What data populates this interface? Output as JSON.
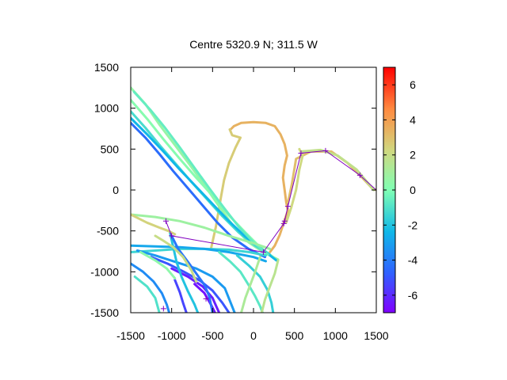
{
  "chart_data": {
    "type": "scatter",
    "title": "Centre 5320.9 N; 311.5  W",
    "xlabel": "",
    "ylabel": "",
    "xlim": [
      -1500,
      1500
    ],
    "ylim": [
      -1500,
      1500
    ],
    "x_ticks": [
      -1500,
      -1000,
      -500,
      0,
      500,
      1000,
      1500
    ],
    "y_ticks": [
      -1500,
      -1000,
      -500,
      0,
      500,
      1000,
      1500
    ],
    "x_tick_labels": [
      "-1500",
      "-1000",
      "-500",
      "0",
      "500",
      "1000",
      "1500"
    ],
    "y_tick_labels": [
      "1500",
      "1000",
      "500",
      "0",
      "-500",
      "-1000",
      "-1500"
    ],
    "colorbar": {
      "range": [
        -7,
        7
      ],
      "ticks": [
        6,
        4,
        2,
        0,
        -2,
        -4,
        -6
      ],
      "tick_labels": [
        "6",
        "4",
        "2",
        "0",
        "-2",
        "-4",
        "-6"
      ],
      "palette": "rainbow (purple to red)"
    },
    "grid": false,
    "legend": "none",
    "tracks": [
      {
        "value": 3.4,
        "points": [
          [
            -280,
            740
          ],
          [
            -240,
            780
          ],
          [
            -150,
            820
          ],
          [
            0,
            830
          ],
          [
            150,
            820
          ],
          [
            260,
            780
          ],
          [
            330,
            680
          ],
          [
            380,
            560
          ],
          [
            410,
            420
          ],
          [
            380,
            300
          ],
          [
            360,
            150
          ],
          [
            380,
            0
          ],
          [
            400,
            -150
          ],
          [
            420,
            -250
          ],
          [
            370,
            -400
          ],
          [
            320,
            -550
          ],
          [
            260,
            -680
          ],
          [
            200,
            -760
          ]
        ]
      },
      {
        "value": 2.6,
        "points": [
          [
            -520,
            -720
          ],
          [
            -460,
            -450
          ],
          [
            -400,
            -100
          ],
          [
            -360,
            120
          ],
          [
            -300,
            330
          ],
          [
            -220,
            520
          ],
          [
            -160,
            640
          ],
          [
            -260,
            670
          ],
          [
            -290,
            740
          ]
        ]
      },
      {
        "value": 3.0,
        "points": [
          [
            420,
            -160
          ],
          [
            470,
            80
          ],
          [
            520,
            380
          ],
          [
            700,
            470
          ],
          [
            950,
            470
          ],
          [
            1150,
            330
          ],
          [
            1300,
            180
          ],
          [
            1450,
            20
          ],
          [
            1500,
            0
          ]
        ]
      },
      {
        "value": 1.8,
        "points": [
          [
            580,
            470
          ],
          [
            820,
            490
          ],
          [
            1030,
            420
          ],
          [
            1260,
            250
          ],
          [
            1470,
            0
          ]
        ]
      },
      {
        "value": 2.2,
        "points": [
          [
            400,
            -400
          ],
          [
            460,
            -220
          ],
          [
            520,
            0
          ],
          [
            560,
            250
          ],
          [
            600,
            420
          ],
          [
            560,
            500
          ]
        ]
      },
      {
        "value": 0.6,
        "points": [
          [
            -1500,
            1250
          ],
          [
            -1320,
            1050
          ],
          [
            -1150,
            800
          ],
          [
            -960,
            550
          ],
          [
            -780,
            310
          ],
          [
            -600,
            60
          ],
          [
            -420,
            -200
          ],
          [
            -240,
            -450
          ],
          [
            -60,
            -640
          ],
          [
            120,
            -760
          ],
          [
            300,
            -850
          ]
        ]
      },
      {
        "value": 0.2,
        "points": [
          [
            -1500,
            1100
          ],
          [
            -1300,
            870
          ],
          [
            -1100,
            620
          ],
          [
            -900,
            380
          ],
          [
            -700,
            150
          ],
          [
            -500,
            -70
          ],
          [
            -300,
            -310
          ],
          [
            -100,
            -520
          ],
          [
            80,
            -700
          ],
          [
            240,
            -820
          ]
        ]
      },
      {
        "value": -1.2,
        "points": [
          [
            -1500,
            960
          ],
          [
            -1320,
            760
          ],
          [
            -1140,
            540
          ],
          [
            -950,
            320
          ],
          [
            -760,
            100
          ],
          [
            -570,
            -110
          ],
          [
            -380,
            -320
          ],
          [
            -180,
            -520
          ],
          [
            20,
            -680
          ],
          [
            200,
            -790
          ]
        ]
      },
      {
        "value": -2.4,
        "points": [
          [
            -1500,
            880
          ],
          [
            -1300,
            680
          ],
          [
            -1100,
            470
          ],
          [
            -900,
            250
          ],
          [
            -700,
            40
          ],
          [
            -500,
            -170
          ],
          [
            -300,
            -380
          ],
          [
            -100,
            -570
          ],
          [
            100,
            -720
          ],
          [
            280,
            -860
          ]
        ]
      },
      {
        "value": -4.4,
        "points": [
          [
            -1500,
            820
          ],
          [
            -1320,
            640
          ],
          [
            -1150,
            440
          ],
          [
            -980,
            230
          ],
          [
            -800,
            20
          ],
          [
            -620,
            -190
          ],
          [
            -440,
            -400
          ],
          [
            -260,
            -580
          ],
          [
            -60,
            -720
          ],
          [
            140,
            -820
          ]
        ]
      },
      {
        "value": -0.6,
        "points": [
          [
            -1460,
            1200
          ],
          [
            -1260,
            980
          ],
          [
            -1080,
            760
          ],
          [
            -900,
            520
          ],
          [
            -720,
            270
          ],
          [
            -540,
            20
          ],
          [
            -360,
            -220
          ],
          [
            -180,
            -450
          ],
          [
            0,
            -640
          ],
          [
            180,
            -790
          ]
        ]
      },
      {
        "value": 0.8,
        "points": [
          [
            -1500,
            -300
          ],
          [
            -1200,
            -330
          ],
          [
            -900,
            -380
          ],
          [
            -600,
            -460
          ],
          [
            -300,
            -560
          ],
          [
            0,
            -650
          ],
          [
            200,
            -720
          ]
        ]
      },
      {
        "value": -1.4,
        "points": [
          [
            -1500,
            -760
          ],
          [
            -1200,
            -740
          ],
          [
            -900,
            -720
          ],
          [
            -600,
            -720
          ],
          [
            -300,
            -730
          ],
          [
            -50,
            -760
          ],
          [
            150,
            -800
          ]
        ]
      },
      {
        "value": -2.8,
        "points": [
          [
            -1500,
            -680
          ],
          [
            -1200,
            -690
          ],
          [
            -900,
            -700
          ],
          [
            -600,
            -720
          ],
          [
            -300,
            -760
          ],
          [
            0,
            -820
          ],
          [
            150,
            -870
          ]
        ]
      },
      {
        "value": -3.2,
        "points": [
          [
            -1420,
            -740
          ],
          [
            -1200,
            -800
          ],
          [
            -950,
            -880
          ],
          [
            -700,
            -960
          ],
          [
            -500,
            -1060
          ],
          [
            -350,
            -1200
          ],
          [
            -230,
            -1500
          ]
        ]
      },
      {
        "value": -5.0,
        "points": [
          [
            -1250,
            -820
          ],
          [
            -1050,
            -900
          ],
          [
            -850,
            -1000
          ],
          [
            -650,
            -1110
          ],
          [
            -500,
            -1230
          ],
          [
            -380,
            -1380
          ],
          [
            -300,
            -1500
          ]
        ]
      },
      {
        "value": -6.3,
        "points": [
          [
            -1000,
            -960
          ],
          [
            -800,
            -1060
          ],
          [
            -620,
            -1180
          ],
          [
            -500,
            -1320
          ],
          [
            -420,
            -1500
          ]
        ]
      },
      {
        "value": -6.6,
        "points": [
          [
            -720,
            -1150
          ],
          [
            -600,
            -1260
          ],
          [
            -520,
            -1400
          ],
          [
            -470,
            -1500
          ]
        ]
      },
      {
        "value": -3.6,
        "points": [
          [
            -1500,
            -900
          ],
          [
            -1350,
            -1000
          ],
          [
            -1220,
            -1120
          ],
          [
            -1120,
            -1260
          ],
          [
            -1060,
            -1400
          ],
          [
            -1030,
            -1500
          ]
        ]
      },
      {
        "value": -1.0,
        "points": [
          [
            -1450,
            -1060
          ],
          [
            -1300,
            -1180
          ],
          [
            -1200,
            -1320
          ],
          [
            -1150,
            -1500
          ]
        ]
      },
      {
        "value": -5.4,
        "points": [
          [
            -960,
            -1100
          ],
          [
            -900,
            -1250
          ],
          [
            -860,
            -1380
          ],
          [
            -820,
            -1500
          ]
        ]
      },
      {
        "value": -2.0,
        "points": [
          [
            -1020,
            -520
          ],
          [
            -980,
            -700
          ],
          [
            -940,
            -880
          ],
          [
            -880,
            -1060
          ],
          [
            -800,
            -1240
          ],
          [
            -720,
            -1400
          ],
          [
            -680,
            -1500
          ]
        ]
      },
      {
        "value": -4.2,
        "points": [
          [
            -1000,
            -560
          ],
          [
            -920,
            -720
          ],
          [
            -800,
            -880
          ],
          [
            -700,
            -1020
          ],
          [
            -600,
            -1160
          ],
          [
            -540,
            -1300
          ],
          [
            -500,
            -1500
          ]
        ]
      },
      {
        "value": -0.8,
        "points": [
          [
            -420,
            -760
          ],
          [
            -280,
            -880
          ],
          [
            -160,
            -1000
          ],
          [
            -60,
            -1160
          ],
          [
            20,
            -1300
          ],
          [
            80,
            -1420
          ],
          [
            110,
            -1500
          ]
        ]
      },
      {
        "value": -1.6,
        "points": [
          [
            -200,
            -800
          ],
          [
            -60,
            -920
          ],
          [
            80,
            -1060
          ],
          [
            170,
            -1220
          ],
          [
            220,
            -1380
          ],
          [
            240,
            -1500
          ]
        ]
      },
      {
        "value": 1.2,
        "points": [
          [
            80,
            -820
          ],
          [
            20,
            -1000
          ],
          [
            -40,
            -1160
          ],
          [
            -100,
            -1320
          ],
          [
            -150,
            -1500
          ]
        ]
      },
      {
        "value": 1.6,
        "points": [
          [
            300,
            -860
          ],
          [
            260,
            -1020
          ],
          [
            200,
            -1180
          ],
          [
            140,
            -1340
          ],
          [
            100,
            -1500
          ]
        ]
      },
      {
        "value": 2.0,
        "points": [
          [
            -1200,
            -560
          ],
          [
            -1100,
            -620
          ],
          [
            -980,
            -700
          ],
          [
            -860,
            -820
          ],
          [
            -760,
            -980
          ],
          [
            -700,
            -1120
          ]
        ]
      },
      {
        "value": 0.4,
        "points": [
          [
            -1380,
            -760
          ],
          [
            -1200,
            -860
          ],
          [
            -1060,
            -960
          ],
          [
            -960,
            -1080
          ]
        ]
      },
      {
        "value": 2.4,
        "points": [
          [
            -1500,
            -300
          ],
          [
            -1300,
            -400
          ],
          [
            -1150,
            -460
          ],
          [
            -1040,
            -500
          ],
          [
            -960,
            -540
          ]
        ]
      }
    ],
    "route": [
      [
        -1070,
        -380
      ],
      [
        -1000,
        -560
      ],
      [
        120,
        -760
      ],
      [
        370,
        -410
      ],
      [
        380,
        -380
      ],
      [
        420,
        -200
      ],
      [
        580,
        450
      ],
      [
        880,
        480
      ],
      [
        1300,
        180
      ],
      [
        1500,
        0
      ]
    ],
    "route_color": "#8000c0",
    "route_markers": [
      [
        -1070,
        -380
      ],
      [
        -1000,
        -560
      ],
      [
        -1100,
        -1450
      ],
      [
        -580,
        -1330
      ],
      [
        120,
        -760
      ],
      [
        370,
        -410
      ],
      [
        380,
        -380
      ],
      [
        420,
        -200
      ],
      [
        580,
        450
      ],
      [
        880,
        480
      ],
      [
        1300,
        180
      ]
    ]
  }
}
